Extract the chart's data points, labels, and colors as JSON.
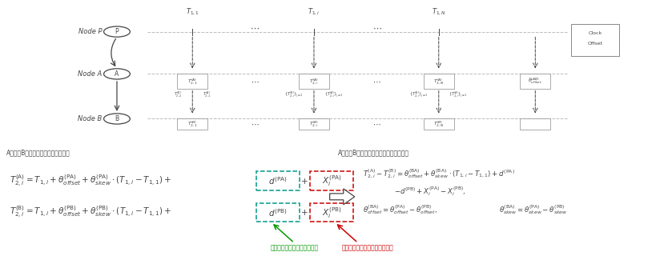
{
  "bg_color": "#ffffff",
  "diagram": {
    "node_labels": [
      "Node P",
      "Node A",
      "Node B"
    ]
  },
  "eq_section_title_left": "A节点和B节点上的数据包接收时间：",
  "eq_section_title_right": "A节点和B节点上的数据包接收时间差值：",
  "label_det": "数据包通信时延的确定性部分",
  "label_indet": "数据包通信时延的不确定性部分",
  "arrow_color_det": "#009900",
  "arrow_color_indet": "#cc0000",
  "box_color_det": "#009988",
  "box_color_indet": "#cc0000",
  "diagram_color": "#555555",
  "darkgray": "#444444",
  "gray": "#888888",
  "lightgray": "#bbbbbb"
}
